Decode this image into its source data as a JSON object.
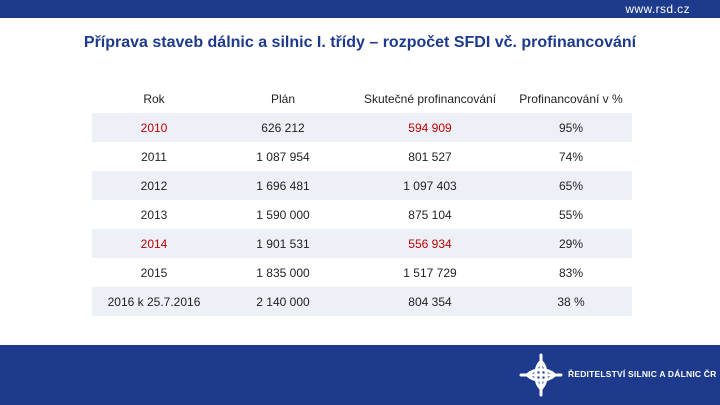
{
  "header": {
    "url": "www.rsd.cz"
  },
  "title": "Příprava staveb dálnic a silnic I. třídy – rozpočet SFDI vč. profinancování",
  "table": {
    "columns": [
      "Rok",
      "Plán",
      "Skutečné profinancování",
      "Profinancování v %"
    ],
    "rows": [
      {
        "year": "2010",
        "plan": "626 212",
        "actual": "594 909",
        "pct": "95%",
        "highlight": true
      },
      {
        "year": "2011",
        "plan": "1 087 954",
        "actual": "801 527",
        "pct": "74%",
        "highlight": false
      },
      {
        "year": "2012",
        "plan": "1 696 481",
        "actual": "1 097 403",
        "pct": "65%",
        "highlight": false
      },
      {
        "year": "2013",
        "plan": "1 590 000",
        "actual": "875 104",
        "pct": "55%",
        "highlight": false
      },
      {
        "year": "2014",
        "plan": "1 901 531",
        "actual": "556 934",
        "pct": "29%",
        "highlight": true
      },
      {
        "year": "2015",
        "plan": "1 835 000",
        "actual": "1 517 729",
        "pct": "83%",
        "highlight": false
      },
      {
        "year": "2016 k 25.7.2016",
        "plan": "2 140 000",
        "actual": "804 354",
        "pct": "38 %",
        "highlight": false
      }
    ]
  },
  "footer": {
    "logo_text": "ŘEDITELSTVÍ SILNIC A DÁLNIC ČR"
  },
  "colors": {
    "brand_blue": "#1d3a8c",
    "highlight_red": "#c00000",
    "row_stripe": "#eef0f7"
  }
}
